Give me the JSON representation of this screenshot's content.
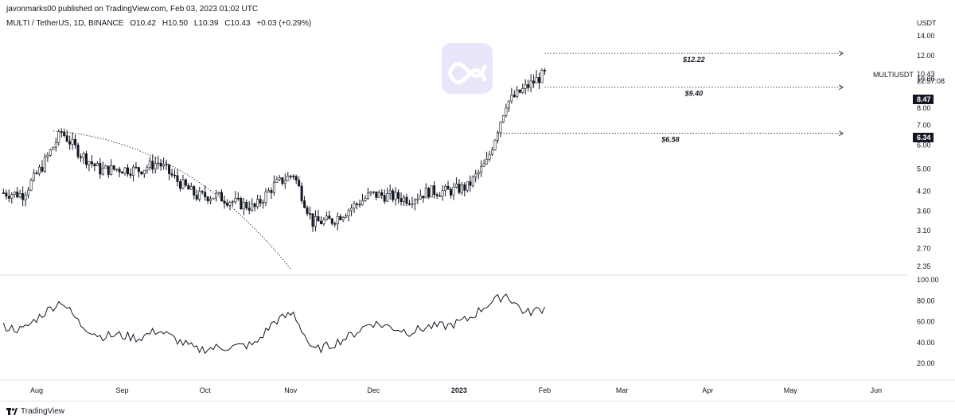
{
  "header": {
    "published": "javonmarks00 published on TradingView.com, Feb 03, 2023 01:02 UTC",
    "pair": "MULTI / TetherUS, 1D, BINANCE",
    "open": "O10.42",
    "high": "H10.50",
    "low": "L10.39",
    "close": "C10.43",
    "change": "+0.03 (+0.29%)"
  },
  "price_axis": {
    "currency": "USDT",
    "symbol_tag": "MULTIUSDT",
    "last_price": "10.43",
    "countdown": "22:57:08",
    "badges": [
      "8.47",
      "6.34"
    ]
  },
  "footer": {
    "brand": "TradingView"
  },
  "logo": {
    "name": "multichain-logo",
    "color": "#e9e6fb"
  },
  "colors": {
    "candle": "#131722",
    "line": "#131722",
    "dotted": "#131722"
  },
  "chart_data": [
    {
      "type": "candlestick",
      "title": "MULTI / TetherUS, 1D, BINANCE",
      "xlabel": "",
      "ylabel": "USDT",
      "y_scale": "log",
      "ylim": [
        2.1,
        15.5
      ],
      "y_ticks": [
        14.0,
        12.0,
        10.0,
        8.0,
        7.0,
        6.0,
        5.0,
        4.2,
        3.6,
        3.1,
        2.7,
        2.35
      ],
      "x_ticks": [
        "Aug",
        "Sep",
        "Oct",
        "Nov",
        "Dec",
        "2023",
        "Feb",
        "Mar",
        "Apr",
        "May",
        "Jun"
      ],
      "x_tick_dates": [
        "2022-08-01",
        "2022-09-01",
        "2022-10-01",
        "2022-11-01",
        "2022-12-01",
        "2023-01-01",
        "2023-02-01",
        "2023-03-01",
        "2023-04-01",
        "2023-05-01",
        "2023-06-01"
      ],
      "candles_weekly_close": [
        {
          "date": "2022-07-20",
          "close": 4.15
        },
        {
          "date": "2022-07-27",
          "close": 4.1
        },
        {
          "date": "2022-08-03",
          "close": 5.1
        },
        {
          "date": "2022-08-10",
          "close": 6.65
        },
        {
          "date": "2022-08-17",
          "close": 5.6
        },
        {
          "date": "2022-08-24",
          "close": 4.95
        },
        {
          "date": "2022-08-31",
          "close": 5.0
        },
        {
          "date": "2022-09-07",
          "close": 4.95
        },
        {
          "date": "2022-09-14",
          "close": 5.25
        },
        {
          "date": "2022-09-21",
          "close": 4.55
        },
        {
          "date": "2022-09-28",
          "close": 4.05
        },
        {
          "date": "2022-10-05",
          "close": 4.05
        },
        {
          "date": "2022-10-12",
          "close": 3.85
        },
        {
          "date": "2022-10-19",
          "close": 3.7
        },
        {
          "date": "2022-10-26",
          "close": 4.4
        },
        {
          "date": "2022-11-02",
          "close": 4.8
        },
        {
          "date": "2022-11-09",
          "close": 3.3
        },
        {
          "date": "2022-11-16",
          "close": 3.35
        },
        {
          "date": "2022-11-23",
          "close": 3.7
        },
        {
          "date": "2022-11-30",
          "close": 4.1
        },
        {
          "date": "2022-12-07",
          "close": 4.05
        },
        {
          "date": "2022-12-14",
          "close": 3.95
        },
        {
          "date": "2022-12-21",
          "close": 4.2
        },
        {
          "date": "2022-12-28",
          "close": 4.2
        },
        {
          "date": "2023-01-04",
          "close": 4.35
        },
        {
          "date": "2023-01-11",
          "close": 5.25
        },
        {
          "date": "2023-01-18",
          "close": 8.3
        },
        {
          "date": "2023-01-25",
          "close": 9.35
        },
        {
          "date": "2023-02-01",
          "close": 10.43
        }
      ],
      "trend_curve": "dotted parabolic arc from early Aug 2022 (~6.6) to early Nov 2022 (~2.3)",
      "levels": [
        {
          "label": "$12.22",
          "value": 12.22,
          "from": "2023-02-01",
          "to": "2023-05-20"
        },
        {
          "label": "$9.40",
          "value": 9.4,
          "from": "2023-02-01",
          "to": "2023-05-20"
        },
        {
          "label": "$6.58",
          "value": 6.58,
          "from": "2023-01-15",
          "to": "2023-05-20"
        }
      ]
    },
    {
      "type": "line",
      "title": "",
      "ylim": [
        10,
        100
      ],
      "y_ticks": [
        100.0,
        80.0,
        60.0,
        40.0,
        20.0
      ],
      "series": [
        {
          "points": [
            {
              "date": "2022-07-20",
              "value": 55
            },
            {
              "date": "2022-07-27",
              "value": 52
            },
            {
              "date": "2022-08-03",
              "value": 67
            },
            {
              "date": "2022-08-10",
              "value": 80
            },
            {
              "date": "2022-08-17",
              "value": 57
            },
            {
              "date": "2022-08-24",
              "value": 46
            },
            {
              "date": "2022-08-31",
              "value": 47
            },
            {
              "date": "2022-09-07",
              "value": 44
            },
            {
              "date": "2022-09-14",
              "value": 52
            },
            {
              "date": "2022-09-21",
              "value": 42
            },
            {
              "date": "2022-09-28",
              "value": 33
            },
            {
              "date": "2022-10-05",
              "value": 35
            },
            {
              "date": "2022-10-12",
              "value": 36
            },
            {
              "date": "2022-10-19",
              "value": 38
            },
            {
              "date": "2022-10-26",
              "value": 60
            },
            {
              "date": "2022-11-02",
              "value": 68
            },
            {
              "date": "2022-11-09",
              "value": 32
            },
            {
              "date": "2022-11-16",
              "value": 38
            },
            {
              "date": "2022-11-23",
              "value": 47
            },
            {
              "date": "2022-11-30",
              "value": 59
            },
            {
              "date": "2022-12-07",
              "value": 55
            },
            {
              "date": "2022-12-14",
              "value": 50
            },
            {
              "date": "2022-12-21",
              "value": 55
            },
            {
              "date": "2022-12-28",
              "value": 56
            },
            {
              "date": "2023-01-04",
              "value": 62
            },
            {
              "date": "2023-01-11",
              "value": 76
            },
            {
              "date": "2023-01-18",
              "value": 86
            },
            {
              "date": "2023-01-25",
              "value": 68
            },
            {
              "date": "2023-02-01",
              "value": 73
            }
          ]
        }
      ]
    }
  ]
}
